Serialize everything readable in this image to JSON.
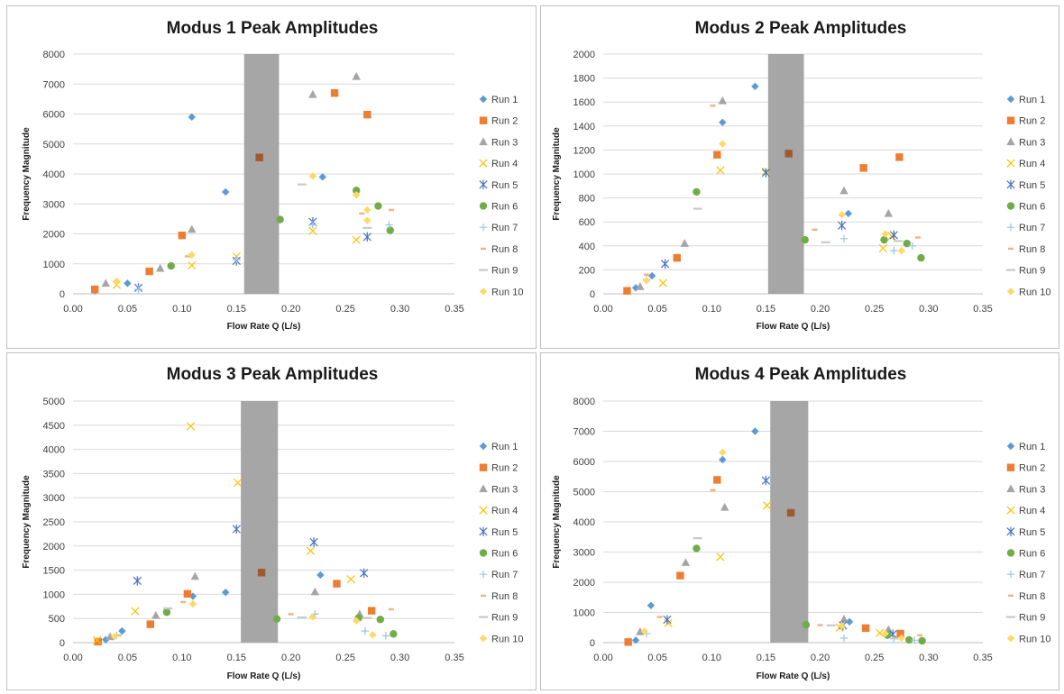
{
  "colors": {
    "Run 1": "#5B9BD5",
    "Run 2": "#ED7D31",
    "Run 3": "#A5A5A5",
    "Run 4": "#FFC000",
    "Run 5": "#4472C4",
    "Run 6": "#70AD47",
    "Run 7": "#9DC3E6",
    "Run 8": "#F4B183",
    "Run 9": "#C9C9C9",
    "Run 10": "#FFD966",
    "band": "#A6A6A6",
    "highlight": "#9E5A2D"
  },
  "markers": {
    "Run 1": "diamond",
    "Run 2": "square",
    "Run 3": "triangle",
    "Run 4": "x",
    "Run 5": "star",
    "Run 6": "circle",
    "Run 7": "plus",
    "Run 8": "dash",
    "Run 9": "longdash",
    "Run 10": "diamond"
  },
  "chart_data": [
    {
      "type": "scatter",
      "title": "Modus 1 Peak Amplitudes",
      "xlabel": "Flow Rate Q (L/s)",
      "ylabel": "Frequency Magnitude",
      "xlim": [
        0,
        0.35
      ],
      "ylim": [
        0,
        8000
      ],
      "xticks": [
        "0.00",
        "0.05",
        "0.10",
        "0.15",
        "0.20",
        "0.25",
        "0.30",
        "0.35"
      ],
      "yticks": [
        "0",
        "1000",
        "2000",
        "3000",
        "4000",
        "5000",
        "6000",
        "7000",
        "8000"
      ],
      "band": [
        0.157,
        0.189
      ],
      "grid": true,
      "legend": "right",
      "highlight": {
        "x": 0.171,
        "y": 4550
      },
      "series": [
        {
          "name": "Run 1",
          "points": [
            [
              0.02,
              100
            ],
            [
              0.05,
              350
            ],
            [
              0.109,
              5900
            ],
            [
              0.14,
              3400
            ],
            [
              0.229,
              3900
            ]
          ]
        },
        {
          "name": "Run 2",
          "points": [
            [
              0.02,
              150
            ],
            [
              0.07,
              750
            ],
            [
              0.1,
              1950
            ],
            [
              0.24,
              6700
            ],
            [
              0.27,
              5980
            ]
          ]
        },
        {
          "name": "Run 3",
          "points": [
            [
              0.03,
              350
            ],
            [
              0.08,
              850
            ],
            [
              0.109,
              2150
            ],
            [
              0.22,
              6650
            ],
            [
              0.26,
              7250
            ]
          ]
        },
        {
          "name": "Run 4",
          "points": [
            [
              0.04,
              300
            ],
            [
              0.109,
              950
            ],
            [
              0.15,
              1250
            ],
            [
              0.22,
              2100
            ],
            [
              0.26,
              1800
            ]
          ]
        },
        {
          "name": "Run 5",
          "points": [
            [
              0.06,
              200
            ],
            [
              0.15,
              1100
            ],
            [
              0.22,
              2400
            ],
            [
              0.27,
              1900
            ]
          ]
        },
        {
          "name": "Run 6",
          "points": [
            [
              0.09,
              930
            ],
            [
              0.19,
              2480
            ],
            [
              0.26,
              3450
            ],
            [
              0.28,
              2930
            ],
            [
              0.291,
              2120
            ]
          ]
        },
        {
          "name": "Run 7",
          "points": [
            [
              0.06,
              150
            ],
            [
              0.15,
              1150
            ],
            [
              0.22,
              2300
            ],
            [
              0.29,
              2300
            ]
          ]
        },
        {
          "name": "Run 8",
          "points": [
            [
              0.105,
              1250
            ],
            [
              0.265,
              2680
            ],
            [
              0.292,
              2800
            ]
          ]
        },
        {
          "name": "Run 9",
          "points": [
            [
              0.21,
              3650
            ],
            [
              0.27,
              2200
            ]
          ]
        },
        {
          "name": "Run 10",
          "points": [
            [
              0.04,
              420
            ],
            [
              0.109,
              1300
            ],
            [
              0.22,
              3930
            ],
            [
              0.26,
              3300
            ],
            [
              0.27,
              2450
            ],
            [
              0.27,
              2800
            ]
          ]
        }
      ]
    },
    {
      "type": "scatter",
      "title": "Modus 2 Peak Amplitudes",
      "xlabel": "Flow Rate Q (L/s)",
      "ylabel": "Frequency Magnitude",
      "xlim": [
        0,
        0.35
      ],
      "ylim": [
        0,
        2000
      ],
      "xticks": [
        "0.00",
        "0.05",
        "0.10",
        "0.15",
        "0.20",
        "0.25",
        "0.30",
        "0.35"
      ],
      "yticks": [
        "0",
        "200",
        "400",
        "600",
        "800",
        "1000",
        "1200",
        "1400",
        "1600",
        "1800",
        "2000"
      ],
      "band": [
        0.152,
        0.185
      ],
      "grid": true,
      "legend": "right",
      "highlight": {
        "x": 0.171,
        "y": 1170
      },
      "series": [
        {
          "name": "Run 1",
          "points": [
            [
              0.03,
              50
            ],
            [
              0.045,
              150
            ],
            [
              0.11,
              1430
            ],
            [
              0.14,
              1730
            ],
            [
              0.226,
              670
            ]
          ]
        },
        {
          "name": "Run 2",
          "points": [
            [
              0.022,
              25
            ],
            [
              0.068,
              300
            ],
            [
              0.105,
              1160
            ],
            [
              0.24,
              1050
            ],
            [
              0.273,
              1140
            ]
          ]
        },
        {
          "name": "Run 3",
          "points": [
            [
              0.034,
              60
            ],
            [
              0.075,
              420
            ],
            [
              0.11,
              1610
            ],
            [
              0.222,
              860
            ],
            [
              0.263,
              670
            ]
          ]
        },
        {
          "name": "Run 4",
          "points": [
            [
              0.055,
              90
            ],
            [
              0.108,
              1030
            ],
            [
              0.15,
              1020
            ],
            [
              0.258,
              380
            ],
            [
              0.266,
              480
            ]
          ]
        },
        {
          "name": "Run 5",
          "points": [
            [
              0.057,
              250
            ],
            [
              0.15,
              1010
            ],
            [
              0.22,
              570
            ],
            [
              0.268,
              490
            ]
          ]
        },
        {
          "name": "Run 6",
          "points": [
            [
              0.086,
              850
            ],
            [
              0.186,
              450
            ],
            [
              0.259,
              450
            ],
            [
              0.28,
              420
            ],
            [
              0.293,
              300
            ]
          ]
        },
        {
          "name": "Run 7",
          "points": [
            [
              0.04,
              120
            ],
            [
              0.222,
              460
            ],
            [
              0.268,
              360
            ],
            [
              0.285,
              400
            ]
          ]
        },
        {
          "name": "Run 8",
          "points": [
            [
              0.04,
              160
            ],
            [
              0.101,
              1570
            ],
            [
              0.195,
              535
            ],
            [
              0.29,
              470
            ]
          ]
        },
        {
          "name": "Run 9",
          "points": [
            [
              0.087,
              710
            ],
            [
              0.205,
              430
            ],
            [
              0.272,
              440
            ]
          ]
        },
        {
          "name": "Run 10",
          "points": [
            [
              0.04,
              110
            ],
            [
              0.11,
              1250
            ],
            [
              0.22,
              660
            ],
            [
              0.26,
              500
            ],
            [
              0.275,
              360
            ]
          ]
        }
      ]
    },
    {
      "type": "scatter",
      "title": "Modus 3 Peak Amplitudes",
      "xlabel": "Flow Rate Q (L/s)",
      "ylabel": "Frequency Magnitude",
      "xlim": [
        0,
        0.35
      ],
      "ylim": [
        0,
        5000
      ],
      "xticks": [
        "0.00",
        "0.05",
        "0.10",
        "0.15",
        "0.20",
        "0.25",
        "0.30",
        "0.35"
      ],
      "yticks": [
        "0",
        "500",
        "1000",
        "1500",
        "2000",
        "2500",
        "3000",
        "3500",
        "4000",
        "4500",
        "5000"
      ],
      "band": [
        0.154,
        0.188
      ],
      "grid": true,
      "legend": "right",
      "highlight": {
        "x": 0.173,
        "y": 1450
      },
      "series": [
        {
          "name": "Run 1",
          "points": [
            [
              0.03,
              60
            ],
            [
              0.045,
              240
            ],
            [
              0.11,
              960
            ],
            [
              0.14,
              1040
            ],
            [
              0.227,
              1400
            ]
          ]
        },
        {
          "name": "Run 2",
          "points": [
            [
              0.023,
              20
            ],
            [
              0.071,
              380
            ],
            [
              0.105,
              1010
            ],
            [
              0.242,
              1220
            ],
            [
              0.274,
              660
            ]
          ]
        },
        {
          "name": "Run 3",
          "points": [
            [
              0.034,
              120
            ],
            [
              0.076,
              560
            ],
            [
              0.112,
              1370
            ],
            [
              0.222,
              1050
            ],
            [
              0.263,
              590
            ]
          ]
        },
        {
          "name": "Run 4",
          "points": [
            [
              0.022,
              50
            ],
            [
              0.057,
              650
            ],
            [
              0.108,
              4480
            ],
            [
              0.151,
              3310
            ],
            [
              0.218,
              1900
            ],
            [
              0.255,
              1310
            ]
          ]
        },
        {
          "name": "Run 5",
          "points": [
            [
              0.059,
              1280
            ],
            [
              0.15,
              2350
            ],
            [
              0.221,
              2080
            ],
            [
              0.267,
              1440
            ]
          ]
        },
        {
          "name": "Run 6",
          "points": [
            [
              0.086,
              630
            ],
            [
              0.187,
              490
            ],
            [
              0.262,
              510
            ],
            [
              0.282,
              480
            ],
            [
              0.294,
              180
            ]
          ]
        },
        {
          "name": "Run 7",
          "points": [
            [
              0.04,
              150
            ],
            [
              0.222,
              590
            ],
            [
              0.268,
              240
            ],
            [
              0.287,
              140
            ]
          ]
        },
        {
          "name": "Run 8",
          "points": [
            [
              0.042,
              150
            ],
            [
              0.101,
              840
            ],
            [
              0.2,
              590
            ],
            [
              0.292,
              690
            ]
          ]
        },
        {
          "name": "Run 9",
          "points": [
            [
              0.087,
              710
            ],
            [
              0.21,
              520
            ],
            [
              0.27,
              510
            ]
          ]
        },
        {
          "name": "Run 10",
          "points": [
            [
              0.038,
              130
            ],
            [
              0.11,
              800
            ],
            [
              0.22,
              530
            ],
            [
              0.26,
              450
            ],
            [
              0.275,
              160
            ]
          ]
        }
      ]
    },
    {
      "type": "scatter",
      "title": "Modus 4 Peak Amplitudes",
      "xlabel": "Flow Rate Q (L/s)",
      "ylabel": "Frequency Magnitude",
      "xlim": [
        0,
        0.35
      ],
      "ylim": [
        0,
        8000
      ],
      "xticks": [
        "0.00",
        "0.05",
        "0.10",
        "0.15",
        "0.20",
        "0.25",
        "0.30",
        "0.35"
      ],
      "yticks": [
        "0",
        "1000",
        "2000",
        "3000",
        "4000",
        "5000",
        "6000",
        "7000",
        "8000"
      ],
      "band": [
        0.154,
        0.189
      ],
      "grid": true,
      "legend": "right",
      "highlight": {
        "x": 0.173,
        "y": 4300
      },
      "series": [
        {
          "name": "Run 1",
          "points": [
            [
              0.03,
              80
            ],
            [
              0.044,
              1230
            ],
            [
              0.11,
              6060
            ],
            [
              0.14,
              7000
            ],
            [
              0.227,
              690
            ]
          ]
        },
        {
          "name": "Run 2",
          "points": [
            [
              0.023,
              20
            ],
            [
              0.071,
              2220
            ],
            [
              0.105,
              5390
            ],
            [
              0.242,
              480
            ],
            [
              0.274,
              300
            ]
          ]
        },
        {
          "name": "Run 3",
          "points": [
            [
              0.034,
              360
            ],
            [
              0.076,
              2650
            ],
            [
              0.112,
              4480
            ],
            [
              0.222,
              780
            ],
            [
              0.263,
              430
            ]
          ]
        },
        {
          "name": "Run 4",
          "points": [
            [
              0.06,
              650
            ],
            [
              0.108,
              2840
            ],
            [
              0.151,
              4540
            ],
            [
              0.218,
              500
            ],
            [
              0.255,
              320
            ]
          ]
        },
        {
          "name": "Run 5",
          "points": [
            [
              0.059,
              760
            ],
            [
              0.15,
              5370
            ],
            [
              0.221,
              570
            ],
            [
              0.267,
              280
            ]
          ]
        },
        {
          "name": "Run 6",
          "points": [
            [
              0.086,
              3120
            ],
            [
              0.187,
              590
            ],
            [
              0.262,
              250
            ],
            [
              0.282,
              90
            ],
            [
              0.294,
              60
            ]
          ]
        },
        {
          "name": "Run 7",
          "points": [
            [
              0.04,
              300
            ],
            [
              0.222,
              150
            ],
            [
              0.268,
              130
            ],
            [
              0.287,
              80
            ]
          ]
        },
        {
          "name": "Run 8",
          "points": [
            [
              0.052,
              850
            ],
            [
              0.101,
              5050
            ],
            [
              0.2,
              580
            ],
            [
              0.292,
              240
            ]
          ]
        },
        {
          "name": "Run 9",
          "points": [
            [
              0.087,
              3460
            ],
            [
              0.21,
              570
            ],
            [
              0.27,
              140
            ]
          ]
        },
        {
          "name": "Run 10",
          "points": [
            [
              0.038,
              380
            ],
            [
              0.11,
              6300
            ],
            [
              0.22,
              560
            ],
            [
              0.26,
              300
            ],
            [
              0.275,
              150
            ]
          ]
        }
      ]
    }
  ]
}
